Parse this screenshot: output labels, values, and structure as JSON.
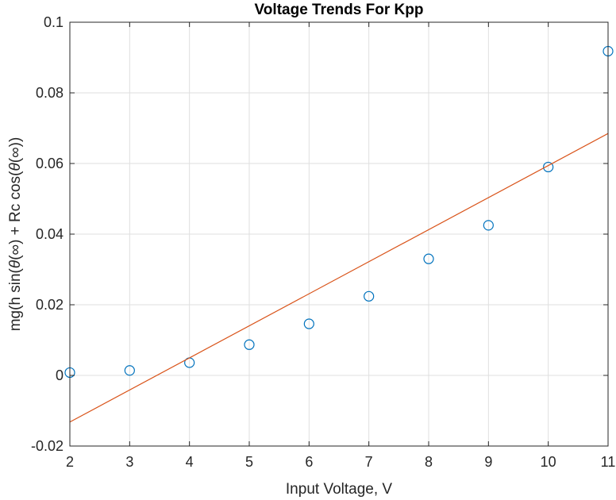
{
  "chart_data": {
    "type": "scatter",
    "title": "Voltage Trends For Kpp",
    "xlabel": "Input Voltage, V",
    "ylabel_parts": [
      "mg(h sin(",
      "θ",
      "(∞) + Rc cos(",
      "θ",
      "(∞))"
    ],
    "xlim": [
      2,
      11
    ],
    "ylim": [
      -0.02,
      0.1
    ],
    "xticks": [
      2,
      3,
      4,
      5,
      6,
      7,
      8,
      9,
      10,
      11
    ],
    "xtick_labels": [
      "2",
      "3",
      "4",
      "5",
      "6",
      "7",
      "8",
      "9",
      "10",
      "11"
    ],
    "yticks": [
      -0.02,
      0,
      0.02,
      0.04,
      0.06,
      0.08,
      0.1
    ],
    "ytick_labels": [
      "-0.02",
      "0",
      "0.02",
      "0.04",
      "0.06",
      "0.08",
      "0.1"
    ],
    "grid": true,
    "series": [
      {
        "kind": "markers",
        "marker": "circle",
        "color": "#0072BD",
        "x": [
          2,
          3,
          4,
          5,
          6,
          7,
          8,
          9,
          10,
          11
        ],
        "y": [
          0.0008,
          0.0014,
          0.0036,
          0.0087,
          0.0146,
          0.0224,
          0.033,
          0.0425,
          0.059,
          0.0918
        ]
      },
      {
        "kind": "line",
        "color": "#D95319",
        "x": [
          2,
          11
        ],
        "y": [
          -0.0132,
          0.0685
        ]
      }
    ]
  }
}
